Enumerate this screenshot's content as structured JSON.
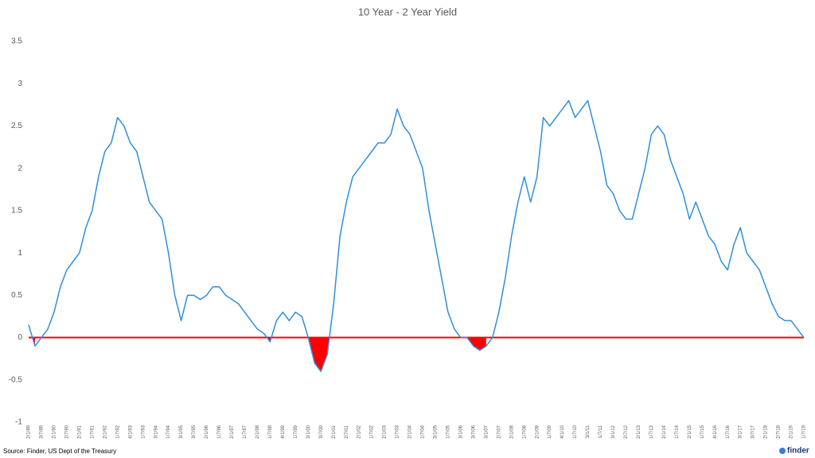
{
  "chart_data": {
    "type": "line",
    "title": "10 Year - 2 Year Yield",
    "categories": [
      "2/1/89",
      null,
      "3/7/89",
      null,
      "2/1/90",
      null,
      "2/7/90",
      null,
      "2/1/91",
      null,
      "1/7/91",
      null,
      "2/1/92",
      null,
      "1/7/92",
      null,
      "4/1/93",
      null,
      "1/7/93",
      null,
      "3/1/94",
      null,
      "1/7/94",
      null,
      "3/1/95",
      null,
      "3/7/95",
      null,
      "2/1/96",
      null,
      "1/7/96",
      null,
      "2/1/97",
      null,
      "1/7/97",
      null,
      "2/1/98",
      null,
      "1/7/98",
      null,
      "4/1/99",
      null,
      "1/7/99",
      null,
      "3/1/00",
      null,
      "3/7/00",
      null,
      "2/1/01",
      null,
      "2/7/01",
      null,
      "2/1/02",
      null,
      "1/7/02",
      null,
      "2/1/03",
      null,
      "1/7/03",
      null,
      "2/1/04",
      null,
      "1/7/04",
      null,
      "3/1/05",
      null,
      "1/7/05",
      null,
      "3/1/06",
      null,
      "3/7/06",
      null,
      "3/1/07",
      null,
      "2/7/07",
      null,
      "2/1/08",
      null,
      "1/7/08",
      null,
      "2/1/09",
      null,
      "1/7/09",
      null,
      "4/1/10",
      null,
      "1/7/10",
      null,
      "3/1/11",
      null,
      "1/7/11",
      null,
      "3/1/12",
      null,
      "2/7/12",
      null,
      "2/1/13",
      null,
      "1/7/13",
      null,
      "2/1/14",
      null,
      "1/7/14",
      null,
      "2/1/15",
      null,
      "1/7/15",
      null,
      "4/1/16",
      null,
      "1/7/16",
      null,
      "3/1/17",
      null,
      "3/7/17",
      null,
      "2/1/18",
      null,
      "2/7/18",
      null,
      "2/1/19",
      null,
      "1/7/19"
    ],
    "series": [
      {
        "color": "#2e8fdc",
        "values": [
          0.15,
          -0.1,
          0.0,
          0.1,
          0.3,
          0.6,
          0.8,
          0.9,
          1.0,
          1.3,
          1.5,
          1.9,
          2.2,
          2.3,
          2.6,
          2.5,
          2.3,
          2.2,
          1.9,
          1.6,
          1.5,
          1.4,
          1.0,
          0.5,
          0.2,
          0.5,
          0.5,
          0.45,
          0.5,
          0.6,
          0.6,
          0.5,
          0.45,
          0.4,
          0.3,
          0.2,
          0.1,
          0.05,
          -0.05,
          0.2,
          0.3,
          0.2,
          0.3,
          0.25,
          0.0,
          -0.3,
          -0.4,
          -0.2,
          0.4,
          1.2,
          1.6,
          1.9,
          2.0,
          2.1,
          2.2,
          2.3,
          2.3,
          2.4,
          2.7,
          2.5,
          2.4,
          2.2,
          2.0,
          1.5,
          1.1,
          0.7,
          0.3,
          0.1,
          0.0,
          0.0,
          -0.1,
          -0.15,
          -0.1,
          0.0,
          0.3,
          0.7,
          1.2,
          1.6,
          1.9,
          1.6,
          1.9,
          2.6,
          2.5,
          2.6,
          2.7,
          2.8,
          2.6,
          2.7,
          2.8,
          2.5,
          2.2,
          1.8,
          1.7,
          1.5,
          1.4,
          1.4,
          1.7,
          2.0,
          2.4,
          2.5,
          2.4,
          2.1,
          1.9,
          1.7,
          1.4,
          1.6,
          1.4,
          1.2,
          1.1,
          0.9,
          0.8,
          1.1,
          1.3,
          1.0,
          0.9,
          0.8,
          0.6,
          0.4,
          0.25,
          0.2,
          0.2,
          0.1,
          0.0
        ]
      }
    ],
    "ylim": [
      -1,
      3.5
    ],
    "yticks": [
      -1,
      -0.5,
      0,
      0.5,
      1,
      1.5,
      2,
      2.5,
      3,
      3.5
    ],
    "zero_line_color": "#ff0000",
    "negative_fill_color": "#ff0000",
    "source": "Source: Finder, US Dept of the Treasury",
    "logo": "finder"
  }
}
